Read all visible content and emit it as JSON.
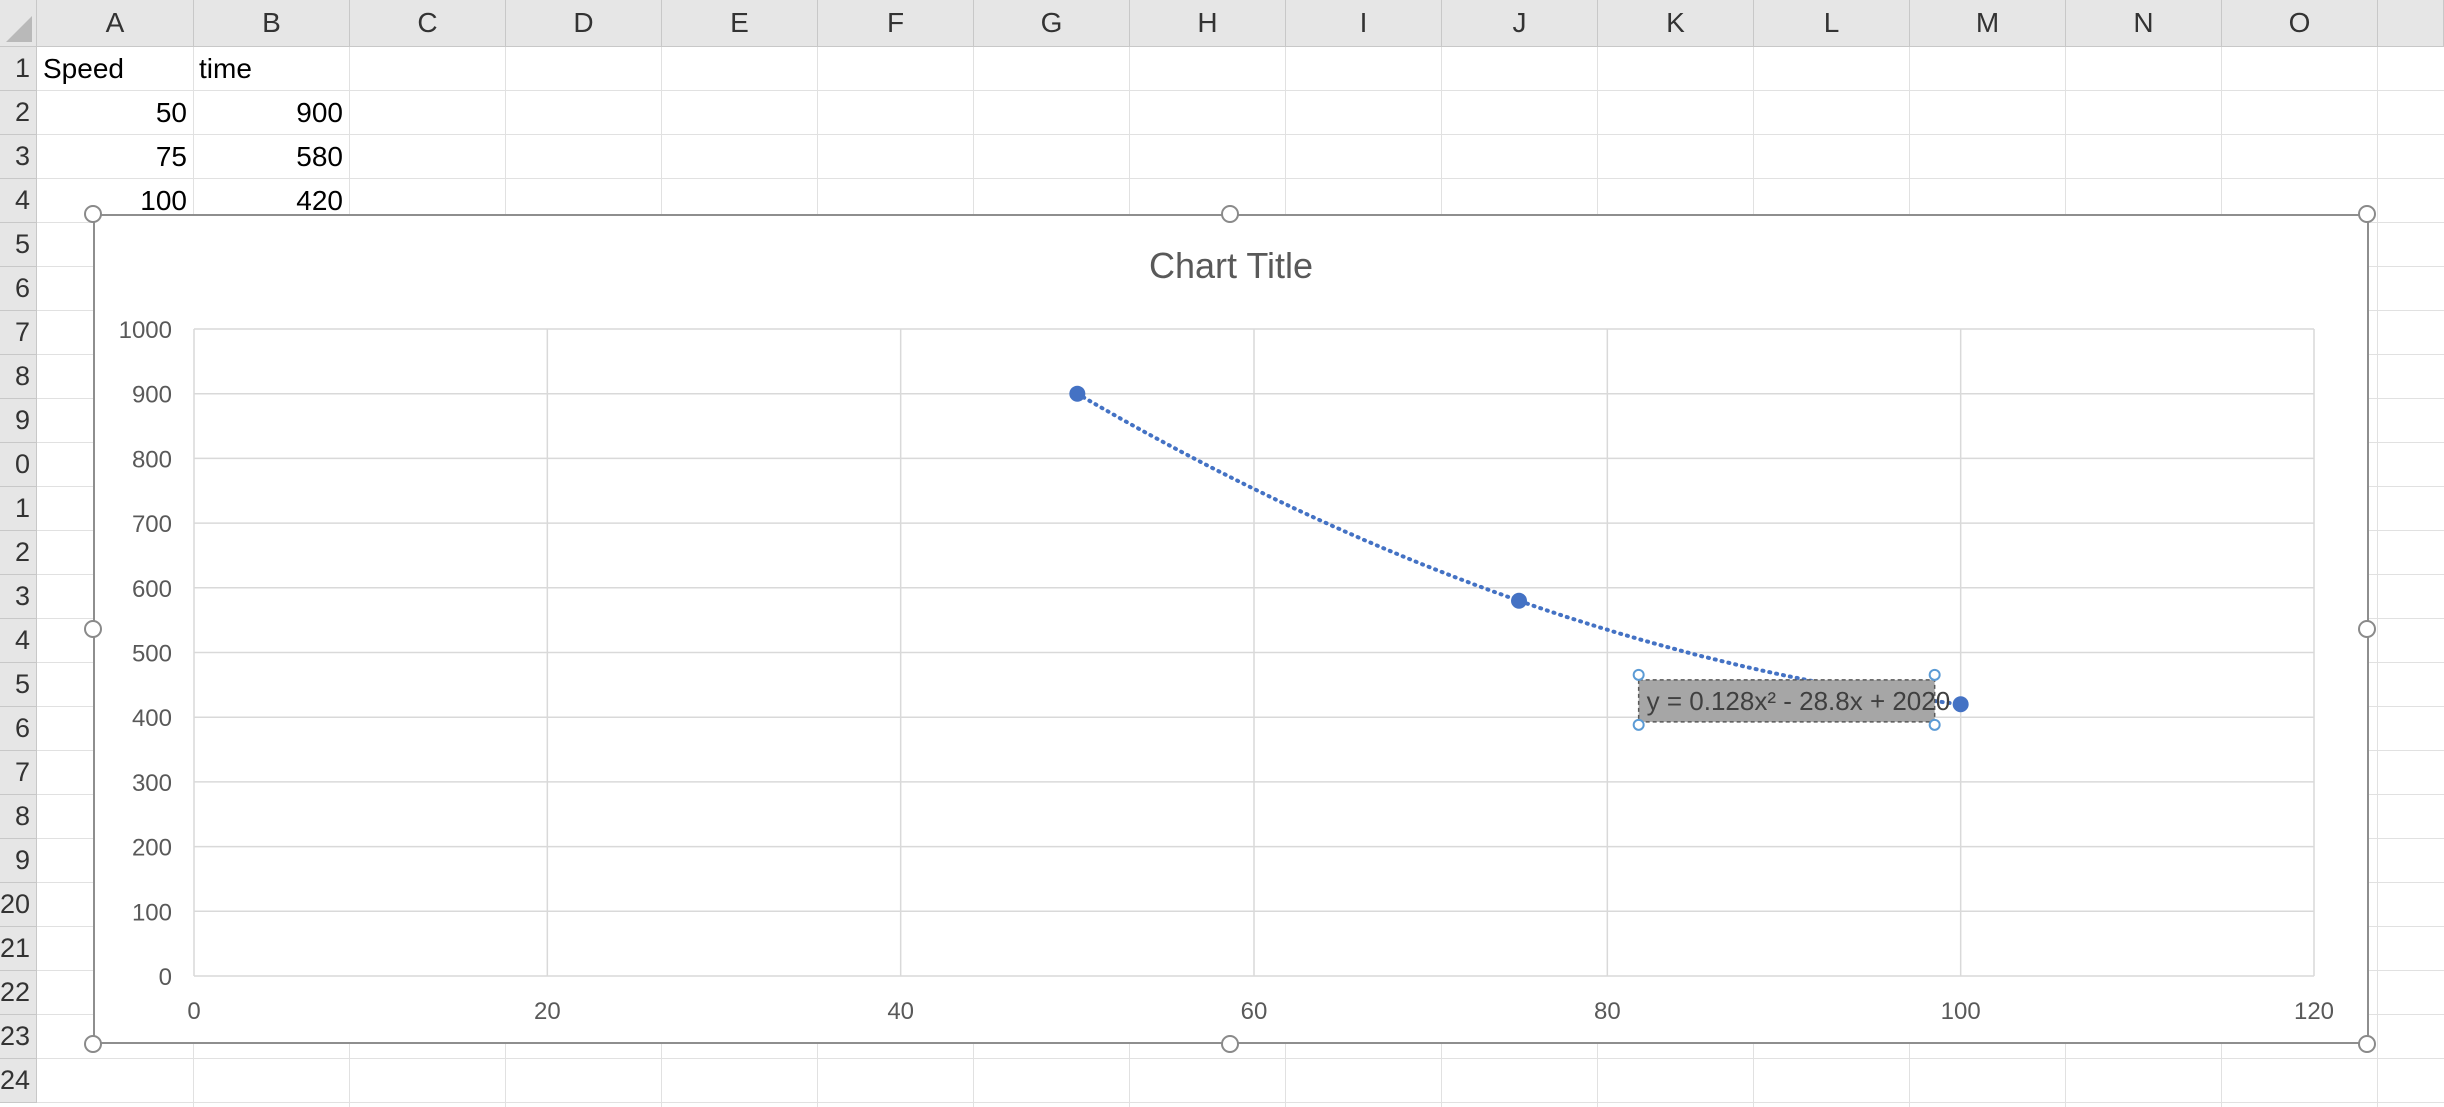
{
  "spreadsheet": {
    "columns": [
      "A",
      "B",
      "C",
      "D",
      "E",
      "F",
      "G",
      "H",
      "I",
      "J",
      "K",
      "L",
      "M",
      "N",
      "O"
    ],
    "rows": [
      "1",
      "2",
      "3",
      "4",
      "5",
      "6",
      "7",
      "8",
      "9",
      "0",
      "1",
      "2",
      "3",
      "4",
      "5",
      "6",
      "7",
      "8",
      "9",
      "20",
      "21",
      "22",
      "23",
      "24"
    ],
    "cells": {
      "A1": "Speed",
      "B1": "time",
      "A2": "50",
      "B2": "900",
      "A3": "75",
      "B3": "580",
      "A4": "100",
      "B4": "420"
    }
  },
  "chart_data": {
    "type": "scatter",
    "title": "Chart Title",
    "xlabel": "",
    "ylabel": "",
    "xlim": [
      0,
      120
    ],
    "ylim": [
      0,
      1000
    ],
    "x_ticks": [
      "0",
      "20",
      "40",
      "60",
      "80",
      "100",
      "120"
    ],
    "y_ticks": [
      "0",
      "100",
      "200",
      "300",
      "400",
      "500",
      "600",
      "700",
      "800",
      "900",
      "1000"
    ],
    "x_tick_values": [
      0,
      20,
      40,
      60,
      80,
      100,
      120
    ],
    "y_tick_values": [
      0,
      100,
      200,
      300,
      400,
      500,
      600,
      700,
      800,
      900,
      1000
    ],
    "grid": true,
    "legend": "none",
    "series": [
      {
        "x": [
          50,
          75,
          100
        ],
        "y": [
          900,
          580,
          420
        ],
        "color": "#4472c4"
      }
    ],
    "trendline": {
      "type": "polynomial",
      "order": 2,
      "coefficients": [
        0.128,
        -28.8,
        2020
      ],
      "equation_label": "y = 0.128x² - 28.8x + 2020",
      "color": "#4472c4",
      "style": "dotted"
    }
  }
}
